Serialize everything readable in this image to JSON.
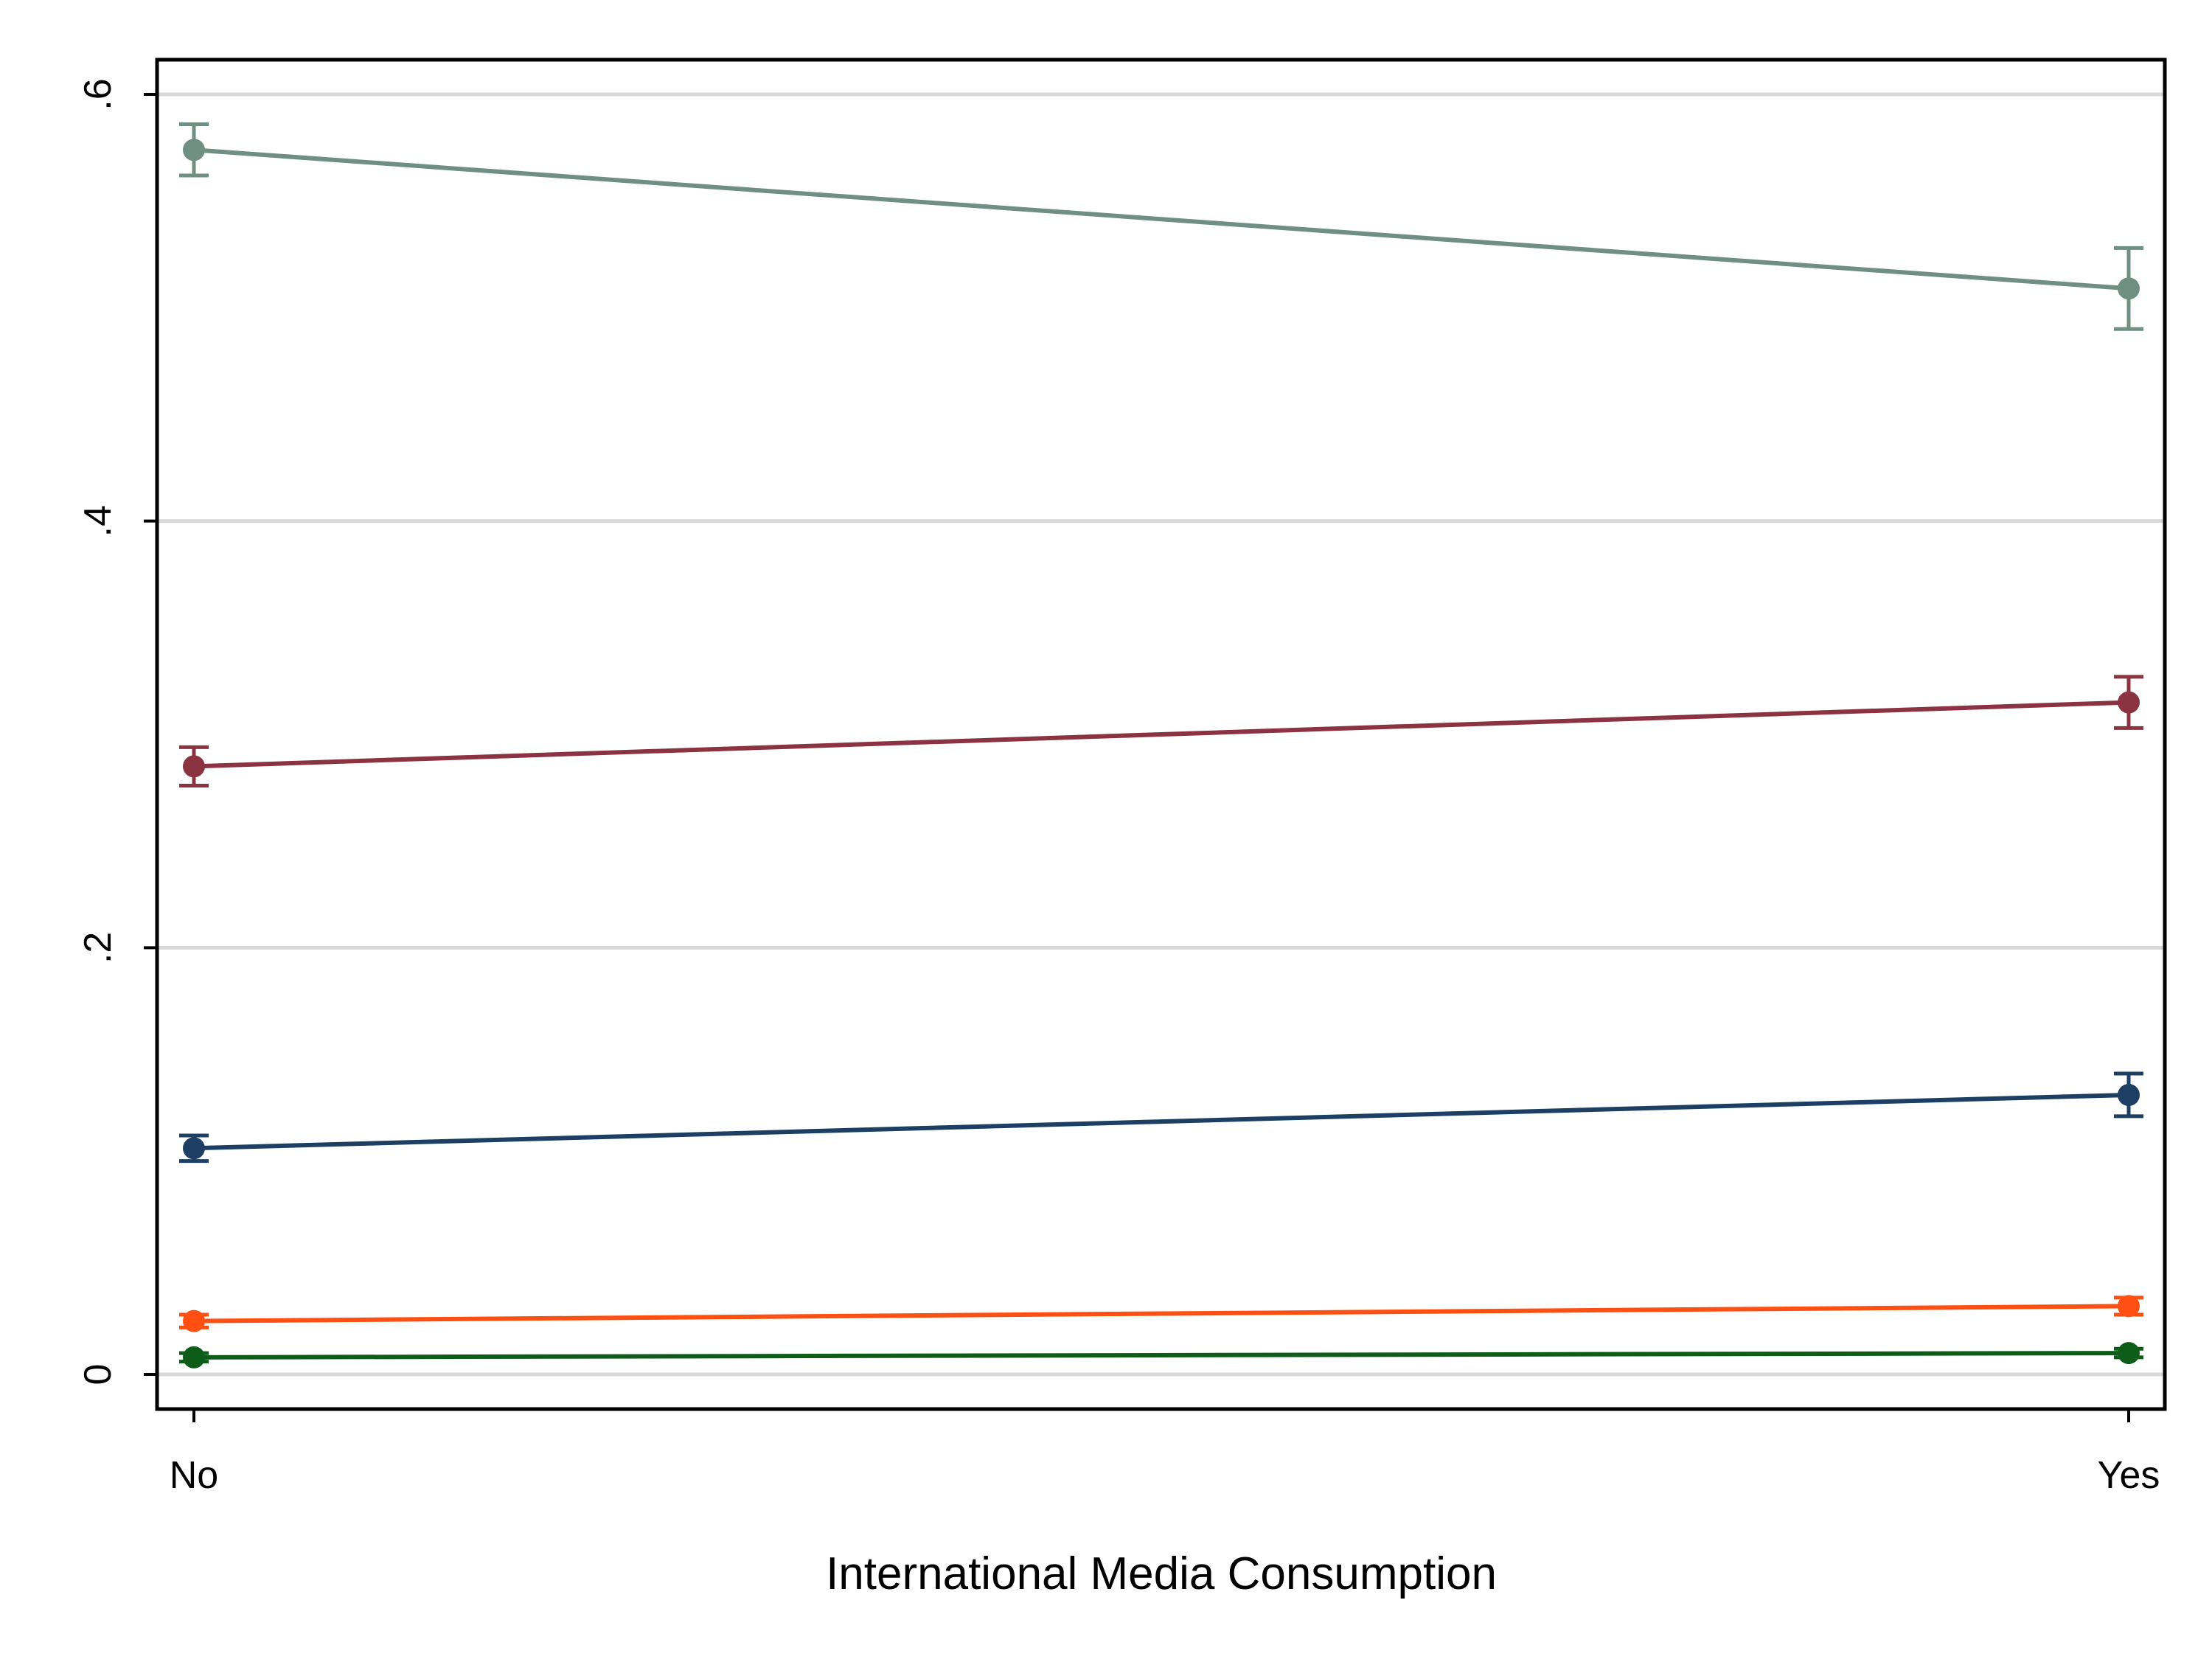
{
  "chart_data": {
    "type": "line",
    "title": "",
    "xlabel": "International Media Consumption",
    "ylabel": "",
    "categories": [
      "No",
      "Yes"
    ],
    "ylim": [
      -0.017,
      0.615
    ],
    "yticks": [
      0,
      0.2,
      0.4,
      0.6
    ],
    "ytick_labels": [
      "0",
      ".2",
      ".4",
      ".6"
    ],
    "grid": true,
    "legend": "none",
    "series": [
      {
        "color": "#6f8f83",
        "values": [
          0.574,
          0.509
        ],
        "ci_low": [
          0.562,
          0.49
        ],
        "ci_high": [
          0.586,
          0.528
        ]
      },
      {
        "color": "#8b3340",
        "values": [
          0.285,
          0.315
        ],
        "ci_low": [
          0.276,
          0.303
        ],
        "ci_high": [
          0.294,
          0.327
        ]
      },
      {
        "color": "#1c3f63",
        "values": [
          0.106,
          0.131
        ],
        "ci_low": [
          0.1,
          0.121
        ],
        "ci_high": [
          0.112,
          0.141
        ]
      },
      {
        "color": "#ff4f12",
        "values": [
          0.025,
          0.032
        ],
        "ci_low": [
          0.022,
          0.028
        ],
        "ci_high": [
          0.028,
          0.036
        ]
      },
      {
        "color": "#0d5c18",
        "values": [
          0.008,
          0.01
        ],
        "ci_low": [
          0.006,
          0.008
        ],
        "ci_high": [
          0.01,
          0.012
        ]
      }
    ]
  }
}
